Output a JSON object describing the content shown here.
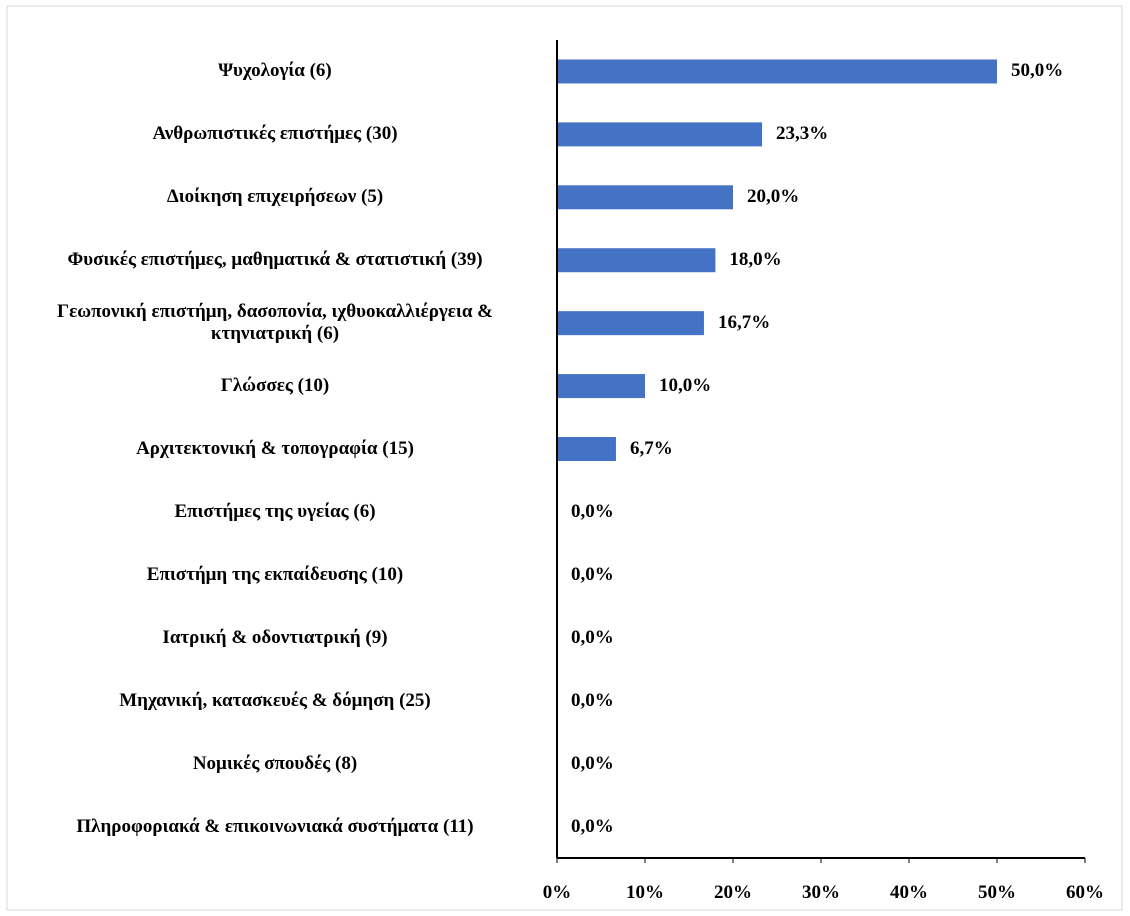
{
  "chart_data": {
    "type": "barh",
    "categories": [
      "Ψυχολογία (6)",
      "Ανθρωπιστικές επιστήμες (30)",
      "Διοίκηση επιχειρήσεων (5)",
      "Φυσικές επιστήμες, μαθηματικά & στατιστική (39)",
      "Γεωπονική επιστήμη, δασοπονία, ιχθυοκαλλιέργεια & κτηνιατρική (6)",
      "Γλώσσες (10)",
      "Αρχιτεκτονική & τοπογραφία (15)",
      "Επιστήμες της υγείας (6)",
      "Επιστήμη της εκπαίδευσης (10)",
      "Ιατρική & οδοντιατρική (9)",
      "Μηχανική, κατασκευές & δόμηση (25)",
      "Νομικές σπουδές (8)",
      "Πληροφοριακά & επικοινωνιακά συστήματα (11)"
    ],
    "values": [
      50.0,
      23.3,
      20.0,
      18.0,
      16.7,
      10.0,
      6.7,
      0,
      0,
      0,
      0,
      0,
      0
    ],
    "value_labels": [
      "50,0%",
      "23,3%",
      "20,0%",
      "18,0%",
      "16,7%",
      "10,0%",
      "6,7%",
      "0,0%",
      "0,0%",
      "0,0%",
      "0,0%",
      "0,0%",
      "0,0%"
    ],
    "color": "#4472c4",
    "xlim": [
      0,
      60
    ],
    "xticks": [
      {
        "value": 0,
        "label": "0%"
      },
      {
        "value": 10,
        "label": "10%"
      },
      {
        "value": 20,
        "label": "20%"
      },
      {
        "value": 30,
        "label": "30%"
      },
      {
        "value": 40,
        "label": "40%"
      },
      {
        "value": 50,
        "label": "50%"
      },
      {
        "value": 60,
        "label": "60%"
      }
    ]
  }
}
